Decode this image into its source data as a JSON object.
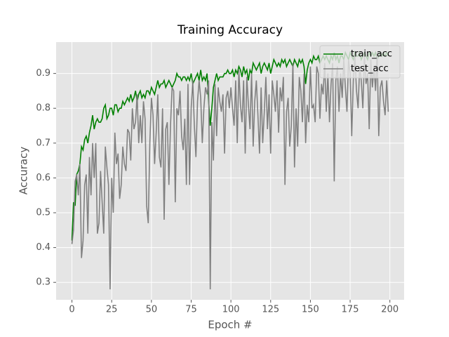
{
  "chart_data": {
    "type": "line",
    "title": "Training Accuracy",
    "x_label": "Epoch #",
    "y_label": "Accuracy",
    "x": [
      0,
      1,
      2,
      3,
      4,
      5,
      6,
      7,
      8,
      9,
      10,
      11,
      12,
      13,
      14,
      15,
      16,
      17,
      18,
      19,
      20,
      21,
      22,
      23,
      24,
      25,
      26,
      27,
      28,
      29,
      30,
      31,
      32,
      33,
      34,
      35,
      36,
      37,
      38,
      39,
      40,
      41,
      42,
      43,
      44,
      45,
      46,
      47,
      48,
      49,
      50,
      51,
      52,
      53,
      54,
      55,
      56,
      57,
      58,
      59,
      60,
      61,
      62,
      63,
      64,
      65,
      66,
      67,
      68,
      69,
      70,
      71,
      72,
      73,
      74,
      75,
      76,
      77,
      78,
      79,
      80,
      81,
      82,
      83,
      84,
      85,
      86,
      87,
      88,
      89,
      90,
      91,
      92,
      93,
      94,
      95,
      96,
      97,
      98,
      99,
      100,
      101,
      102,
      103,
      104,
      105,
      106,
      107,
      108,
      109,
      110,
      111,
      112,
      113,
      114,
      115,
      116,
      117,
      118,
      119,
      120,
      121,
      122,
      123,
      124,
      125,
      126,
      127,
      128,
      129,
      130,
      131,
      132,
      133,
      134,
      135,
      136,
      137,
      138,
      139,
      140,
      141,
      142,
      143,
      144,
      145,
      146,
      147,
      148,
      149,
      150,
      151,
      152,
      153,
      154,
      155,
      156,
      157,
      158,
      159,
      160,
      161,
      162,
      163,
      164,
      165,
      166,
      167,
      168,
      169,
      170,
      171,
      172,
      173,
      174,
      175,
      176,
      177,
      178,
      179,
      180,
      181,
      182,
      183,
      184,
      185,
      186,
      187,
      188,
      189,
      190,
      191,
      192,
      193,
      194,
      195,
      196,
      197,
      198,
      199
    ],
    "series": [
      {
        "name": "train_acc",
        "color": "#008000",
        "values": [
          0.42,
          0.53,
          0.52,
          0.61,
          0.62,
          0.64,
          0.69,
          0.68,
          0.71,
          0.72,
          0.7,
          0.73,
          0.75,
          0.78,
          0.74,
          0.76,
          0.77,
          0.76,
          0.76,
          0.77,
          0.8,
          0.81,
          0.77,
          0.78,
          0.8,
          0.8,
          0.78,
          0.81,
          0.81,
          0.79,
          0.8,
          0.8,
          0.82,
          0.81,
          0.82,
          0.83,
          0.82,
          0.84,
          0.82,
          0.83,
          0.85,
          0.82,
          0.84,
          0.85,
          0.83,
          0.84,
          0.83,
          0.85,
          0.85,
          0.84,
          0.86,
          0.85,
          0.84,
          0.86,
          0.88,
          0.86,
          0.87,
          0.87,
          0.88,
          0.86,
          0.87,
          0.88,
          0.87,
          0.86,
          0.87,
          0.88,
          0.9,
          0.89,
          0.89,
          0.88,
          0.89,
          0.89,
          0.88,
          0.89,
          0.88,
          0.9,
          0.87,
          0.88,
          0.89,
          0.9,
          0.88,
          0.91,
          0.88,
          0.89,
          0.88,
          0.9,
          0.82,
          0.75,
          0.8,
          0.86,
          0.88,
          0.9,
          0.88,
          0.89,
          0.89,
          0.89,
          0.9,
          0.9,
          0.91,
          0.9,
          0.9,
          0.91,
          0.89,
          0.91,
          0.9,
          0.92,
          0.91,
          0.89,
          0.92,
          0.9,
          0.91,
          0.88,
          0.91,
          0.9,
          0.93,
          0.92,
          0.91,
          0.92,
          0.93,
          0.9,
          0.92,
          0.93,
          0.92,
          0.91,
          0.93,
          0.9,
          0.92,
          0.94,
          0.93,
          0.92,
          0.93,
          0.92,
          0.94,
          0.93,
          0.94,
          0.92,
          0.93,
          0.94,
          0.93,
          0.92,
          0.94,
          0.93,
          0.92,
          0.94,
          0.93,
          0.94,
          0.92,
          0.87,
          0.91,
          0.93,
          0.94,
          0.93,
          0.95,
          0.94,
          0.94,
          0.95,
          0.93,
          0.94,
          0.95,
          0.94,
          0.95,
          0.94,
          0.93,
          0.95,
          0.94,
          0.96,
          0.94,
          0.95,
          0.93,
          0.95,
          0.95,
          0.94,
          0.96,
          0.95,
          0.94,
          0.96,
          0.95,
          0.94,
          0.96,
          0.95,
          0.95,
          0.96,
          0.94,
          0.95,
          0.96,
          0.95,
          0.94,
          0.96,
          0.95,
          0.96,
          0.95,
          0.96,
          0.94,
          0.95,
          0.96,
          0.95,
          0.96,
          0.95,
          0.96,
          0.95
        ]
      },
      {
        "name": "test_acc",
        "color": "#808080",
        "values": [
          0.41,
          0.45,
          0.59,
          0.61,
          0.55,
          0.64,
          0.37,
          0.42,
          0.58,
          0.61,
          0.44,
          0.66,
          0.55,
          0.7,
          0.6,
          0.7,
          0.44,
          0.47,
          0.62,
          0.53,
          0.44,
          0.69,
          0.63,
          0.58,
          0.28,
          0.6,
          0.5,
          0.73,
          0.64,
          0.67,
          0.54,
          0.58,
          0.69,
          0.64,
          0.62,
          0.74,
          0.73,
          0.65,
          0.8,
          0.74,
          0.76,
          0.84,
          0.7,
          0.78,
          0.7,
          0.82,
          0.77,
          0.52,
          0.47,
          0.7,
          0.83,
          0.78,
          0.64,
          0.73,
          0.84,
          0.66,
          0.63,
          0.8,
          0.48,
          0.74,
          0.76,
          0.58,
          0.75,
          0.86,
          0.85,
          0.53,
          0.8,
          0.78,
          0.85,
          0.72,
          0.68,
          0.77,
          0.58,
          0.87,
          0.58,
          0.8,
          0.88,
          0.75,
          0.66,
          0.82,
          0.88,
          0.83,
          0.7,
          0.8,
          0.86,
          0.84,
          0.88,
          0.28,
          0.76,
          0.65,
          0.87,
          0.72,
          0.86,
          0.82,
          0.79,
          0.84,
          0.67,
          0.83,
          0.85,
          0.8,
          0.86,
          0.8,
          0.75,
          0.88,
          0.7,
          0.91,
          0.81,
          0.76,
          0.88,
          0.67,
          0.89,
          0.81,
          0.74,
          0.9,
          0.69,
          0.82,
          0.88,
          0.78,
          0.67,
          0.86,
          0.7,
          0.79,
          0.89,
          0.74,
          0.84,
          0.67,
          0.88,
          0.84,
          0.79,
          0.88,
          0.73,
          0.86,
          0.82,
          0.89,
          0.58,
          0.79,
          0.83,
          0.69,
          0.75,
          0.93,
          0.63,
          0.8,
          0.69,
          0.89,
          0.85,
          0.76,
          0.9,
          0.7,
          0.81,
          0.76,
          0.92,
          0.8,
          0.81,
          0.76,
          0.92,
          0.9,
          0.77,
          0.87,
          0.84,
          0.93,
          0.79,
          0.9,
          0.76,
          0.87,
          0.93,
          0.59,
          0.88,
          0.92,
          0.79,
          0.9,
          0.83,
          0.94,
          0.86,
          0.79,
          0.94,
          0.9,
          0.72,
          0.88,
          0.95,
          0.85,
          0.8,
          0.92,
          0.88,
          0.8,
          0.95,
          0.87,
          0.9,
          0.74,
          0.94,
          0.86,
          0.92,
          0.85,
          0.96,
          0.72,
          0.86,
          0.88,
          0.82,
          0.78,
          0.88,
          0.79
        ]
      }
    ],
    "xlim": [
      -9.95,
      208.95
    ],
    "ylim": [
      0.25,
      0.99
    ],
    "xticks": [
      0,
      25,
      50,
      75,
      100,
      125,
      150,
      175,
      200
    ],
    "yticks": [
      0.3,
      0.4,
      0.5,
      0.6,
      0.7,
      0.8,
      0.9
    ],
    "grid": true,
    "legend": "upper right"
  }
}
